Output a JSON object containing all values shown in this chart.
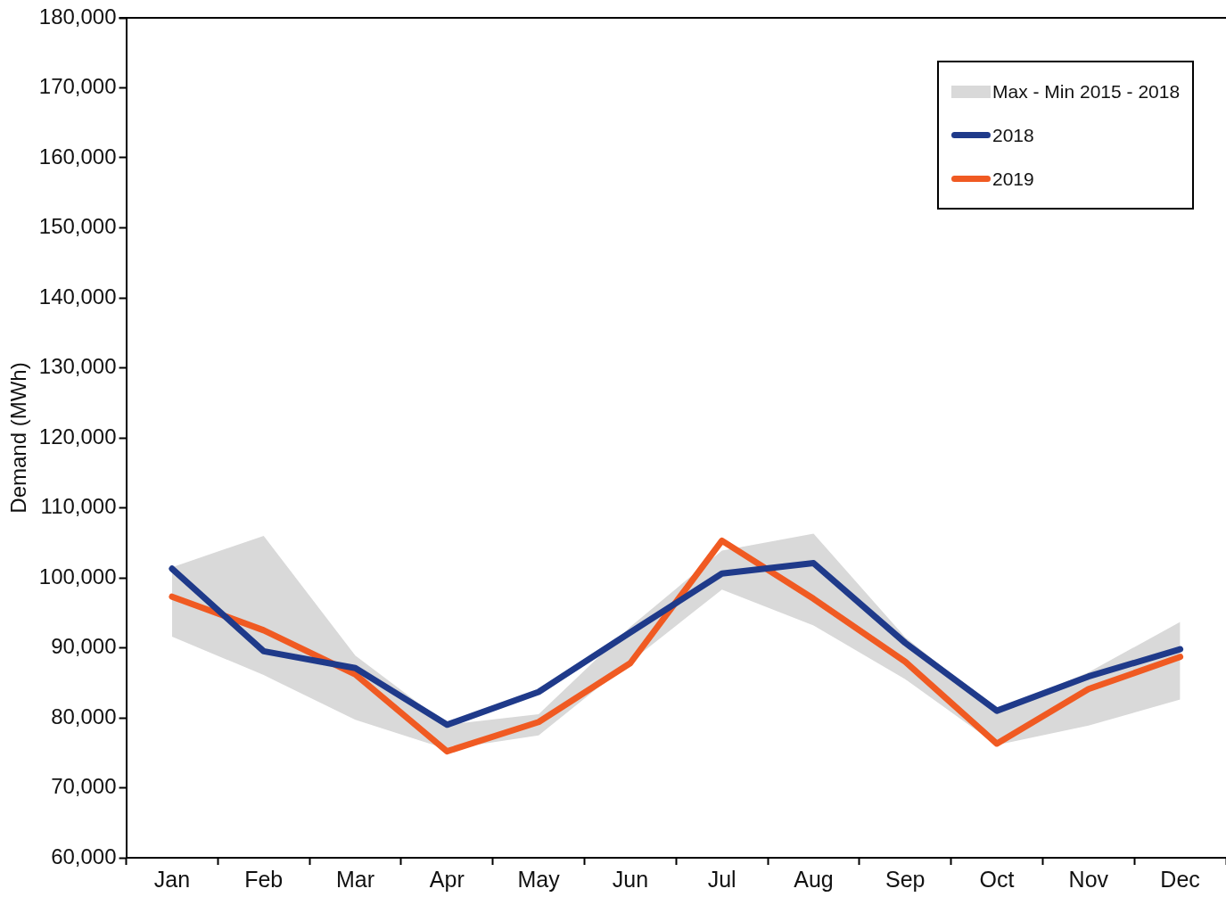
{
  "chart_data": {
    "type": "line",
    "ylabel": "Demand (MWh)",
    "categories": [
      "Jan",
      "Feb",
      "Mar",
      "Apr",
      "May",
      "Jun",
      "Jul",
      "Aug",
      "Sep",
      "Oct",
      "Nov",
      "Dec"
    ],
    "series": [
      {
        "name": "Max - Min  2015 - 2018",
        "color": "#d9d9d9",
        "values": [
          null,
          null,
          null,
          null,
          null,
          null,
          null,
          null,
          null,
          null,
          null,
          null
        ],
        "lower": [
          91600,
          86100,
          79700,
          75500,
          77500,
          88000,
          98300,
          93200,
          85500,
          76100,
          78900,
          82600
        ],
        "upper": [
          101500,
          106000,
          88900,
          79000,
          80500,
          93000,
          103900,
          106300,
          91500,
          81000,
          86500,
          93700
        ]
      },
      {
        "name": "2018",
        "color": "#1f3a8a",
        "values": [
          101300,
          89500,
          87100,
          79000,
          83700,
          92200,
          100600,
          102100,
          90700,
          81000,
          85900,
          89800
        ]
      },
      {
        "name": "2019",
        "color": "#f05a22",
        "values": [
          97300,
          92500,
          86200,
          75200,
          79400,
          87800,
          105300,
          97000,
          88000,
          76300,
          84100,
          88700
        ]
      }
    ],
    "ylim": [
      60000,
      180000
    ],
    "yticks": [
      {
        "value": 60000,
        "label": "60,000"
      },
      {
        "value": 70000,
        "label": "70,000"
      },
      {
        "value": 80000,
        "label": "80,000"
      },
      {
        "value": 90000,
        "label": "90,000"
      },
      {
        "value": 100000,
        "label": "100,000"
      },
      {
        "value": 110000,
        "label": "110,000"
      },
      {
        "value": 120000,
        "label": "120,000"
      },
      {
        "value": 130000,
        "label": "130,000"
      },
      {
        "value": 140000,
        "label": "140,000"
      },
      {
        "value": 150000,
        "label": "150,000"
      },
      {
        "value": 160000,
        "label": "160,000"
      },
      {
        "value": 170000,
        "label": "170,000"
      },
      {
        "value": 180000,
        "label": "180,000"
      }
    ],
    "grid": false,
    "legend": "top right",
    "marker": "none",
    "line_style": "solid"
  }
}
